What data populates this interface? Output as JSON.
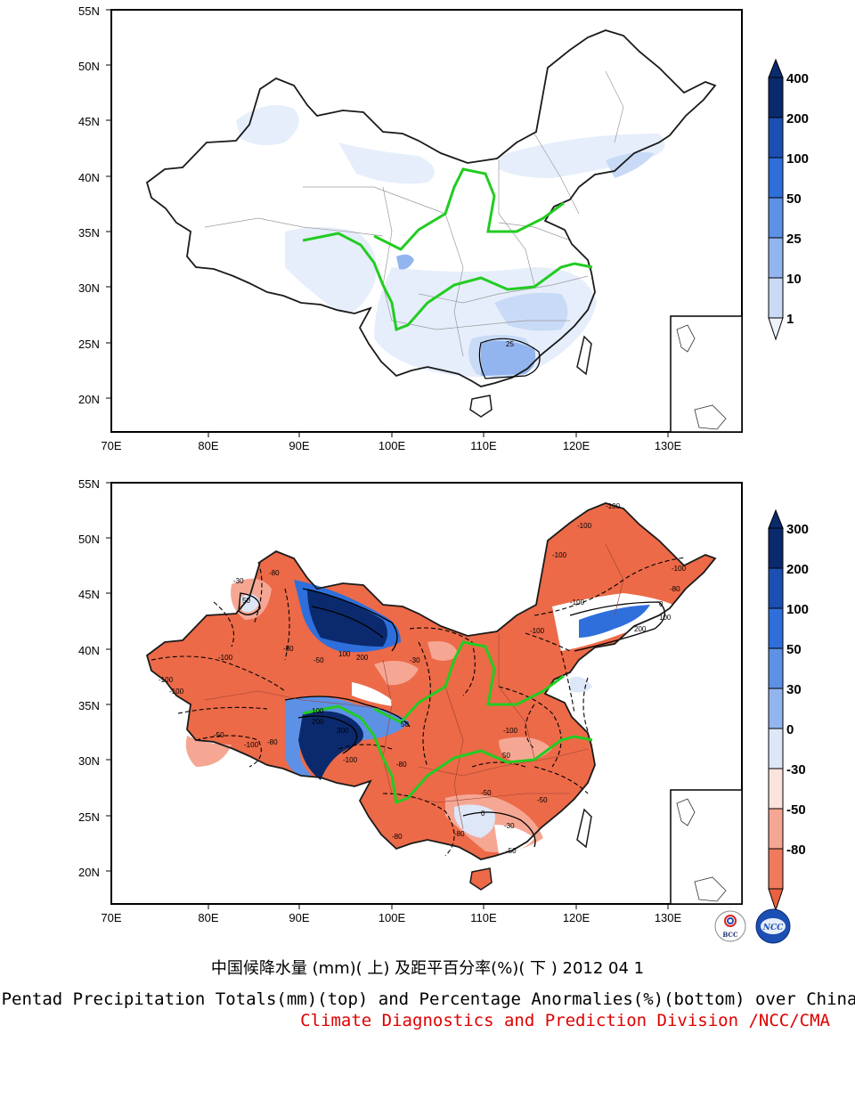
{
  "maps": [
    {
      "id": "totals",
      "lat_ticks": [
        "55N",
        "50N",
        "45N",
        "40N",
        "35N",
        "30N",
        "25N",
        "20N"
      ],
      "lon_ticks": [
        "70E",
        "80E",
        "90E",
        "100E",
        "110E",
        "120E",
        "130E"
      ],
      "colorbar_labels": [
        "400",
        "200",
        "100",
        "50",
        "25",
        "10",
        "1"
      ],
      "colorbar_colors": [
        "#0b2a6e",
        "#1b4fb4",
        "#2e6fdc",
        "#5d91e6",
        "#93b5ef",
        "#c8daf6",
        "#eef3fc"
      ],
      "contour_labels": [
        "25"
      ]
    },
    {
      "id": "anomalies",
      "lat_ticks": [
        "55N",
        "50N",
        "45N",
        "40N",
        "35N",
        "30N",
        "25N",
        "20N"
      ],
      "lon_ticks": [
        "70E",
        "80E",
        "90E",
        "100E",
        "110E",
        "120E",
        "130E"
      ],
      "colorbar_labels": [
        "300",
        "200",
        "100",
        "50",
        "30",
        "0",
        "-30",
        "-50",
        "-80"
      ],
      "colorbar_colors": [
        "#0b2a6e",
        "#1b4fb4",
        "#2e6fdc",
        "#5d91e6",
        "#93b5ef",
        "#dde7f7",
        "#fbe4dc",
        "#f5a794",
        "#ef7a5c",
        "#e8623f"
      ],
      "contour_labels": [
        "-100",
        "-80",
        "-50",
        "-30",
        "0",
        "50",
        "100",
        "200",
        "300"
      ]
    }
  ],
  "title_zh": "中国候降水量 (mm)( 上) 及距平百分率(%)( 下 ) 2012 04 1",
  "title_en": "Pentad Precipitation Totals(mm)(top) and Percentage Anormalies(%)(bottom) over China",
  "credit": "Climate Diagnostics and Prediction Division /NCC/CMA",
  "logos": {
    "left": "BCC",
    "right": "NCC"
  },
  "colors": {
    "river": "#22cc22",
    "border": "#1a1a1a",
    "credit": "#e00000"
  }
}
